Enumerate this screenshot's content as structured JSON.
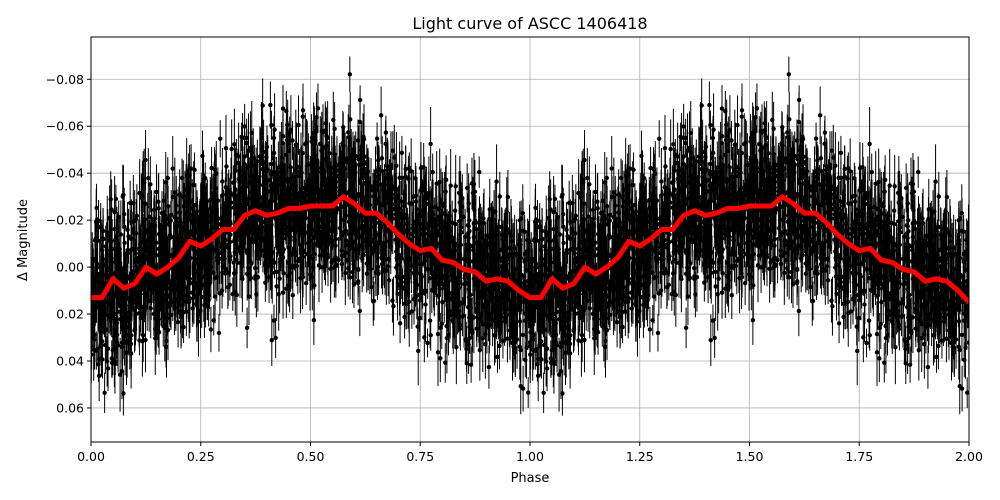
{
  "chart_data": {
    "type": "scatter",
    "title": "Light curve of ASCC 1406418",
    "xlabel": "Phase",
    "ylabel": "Δ Magnitude",
    "xlim": [
      0,
      2
    ],
    "ylim": [
      0.0745,
      -0.098
    ],
    "y_inverted": true,
    "grid": true,
    "xticks": [
      "0.00",
      "0.25",
      "0.50",
      "0.75",
      "1.00",
      "1.25",
      "1.50",
      "1.75",
      "2.00"
    ],
    "xtick_values": [
      0,
      0.25,
      0.5,
      0.75,
      1,
      1.25,
      1.5,
      1.75,
      2
    ],
    "yticks": [
      "−0.08",
      "−0.06",
      "−0.04",
      "−0.02",
      "0.00",
      "0.02",
      "0.04",
      "0.06"
    ],
    "ytick_values": [
      -0.08,
      -0.06,
      -0.04,
      -0.02,
      0,
      0.02,
      0.04,
      0.06
    ],
    "points_color": "#000000",
    "model_color": "#ff0000",
    "model": {
      "x": [
        0,
        0.025,
        0.05,
        0.075,
        0.1,
        0.125,
        0.15,
        0.175,
        0.2,
        0.225,
        0.25,
        0.275,
        0.3,
        0.325,
        0.35,
        0.375,
        0.4,
        0.425,
        0.45,
        0.475,
        0.5,
        0.525,
        0.55,
        0.575,
        0.6,
        0.625,
        0.65,
        0.675,
        0.7,
        0.725,
        0.75,
        0.775,
        0.8,
        0.825,
        0.85,
        0.875,
        0.9,
        0.925,
        0.95,
        0.975,
        1,
        1.025,
        1.05,
        1.075,
        1.1,
        1.125,
        1.15,
        1.175,
        1.2,
        1.225,
        1.25,
        1.275,
        1.3,
        1.325,
        1.35,
        1.375,
        1.4,
        1.425,
        1.45,
        1.475,
        1.5,
        1.525,
        1.55,
        1.575,
        1.6,
        1.625,
        1.65,
        1.675,
        1.7,
        1.725,
        1.75,
        1.775,
        1.8,
        1.825,
        1.85,
        1.875,
        1.9,
        1.925,
        1.95,
        1.975,
        2
      ],
      "y": [
        0.013,
        0.013,
        0.005,
        0.009,
        0.007,
        0.0,
        0.003,
        0.0,
        -0.004,
        -0.011,
        -0.009,
        -0.012,
        -0.016,
        -0.016,
        -0.022,
        -0.024,
        -0.022,
        -0.023,
        -0.025,
        -0.025,
        -0.026,
        -0.026,
        -0.026,
        -0.03,
        -0.027,
        -0.023,
        -0.023,
        -0.019,
        -0.014,
        -0.01,
        -0.007,
        -0.008,
        -0.003,
        -0.002,
        0.001,
        0.002,
        0.006,
        0.005,
        0.006,
        0.01,
        0.013,
        0.013,
        0.005,
        0.009,
        0.007,
        0.0,
        0.003,
        0.0,
        -0.004,
        -0.011,
        -0.009,
        -0.012,
        -0.016,
        -0.016,
        -0.022,
        -0.024,
        -0.022,
        -0.023,
        -0.025,
        -0.025,
        -0.026,
        -0.026,
        -0.026,
        -0.03,
        -0.027,
        -0.023,
        -0.023,
        -0.019,
        -0.014,
        -0.01,
        -0.007,
        -0.008,
        -0.003,
        -0.002,
        0.001,
        0.002,
        0.006,
        0.005,
        0.006,
        0.01,
        0.015
      ]
    }
  }
}
